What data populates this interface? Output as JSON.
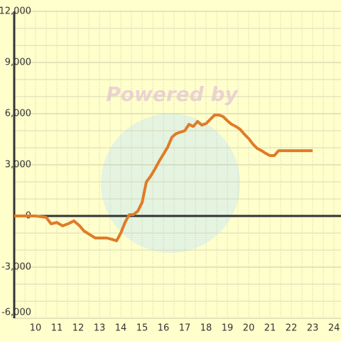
{
  "chart_data": {
    "type": "line",
    "watermark": "Powered by",
    "x": [
      9,
      10,
      10.5,
      10.73,
      11,
      11.27,
      11.53,
      11.8,
      12.07,
      12.27,
      12.53,
      12.8,
      13.07,
      13.33,
      13.6,
      13.8,
      14,
      14.2,
      14.4,
      14.6,
      14.8,
      15,
      15.2,
      15.4,
      15.6,
      15.8,
      16,
      16.2,
      16.4,
      16.6,
      16.8,
      17,
      17.2,
      17.4,
      17.6,
      17.8,
      18,
      18.2,
      18.4,
      18.6,
      18.8,
      19,
      19.2,
      19.4,
      19.6,
      19.8,
      20,
      20.2,
      20.4,
      20.6,
      20.8,
      21,
      21.2,
      21.4,
      21.6,
      22,
      22.5,
      23
    ],
    "series": [
      {
        "color": "#e07b28",
        "values": [
          0,
          0,
          -80,
          -460,
          -380,
          -580,
          -460,
          -290,
          -580,
          -875,
          -1080,
          -1290,
          -1290,
          -1290,
          -1375,
          -1460,
          -1000,
          -375,
          80,
          80,
          290,
          790,
          2000,
          2330,
          2750,
          3210,
          3625,
          4040,
          4625,
          4830,
          4920,
          5000,
          5375,
          5250,
          5540,
          5330,
          5420,
          5670,
          5920,
          5920,
          5830,
          5580,
          5375,
          5250,
          5080,
          4790,
          4540,
          4210,
          3960,
          3830,
          3670,
          3540,
          3540,
          3830,
          3830,
          3830,
          3830,
          3830
        ]
      }
    ],
    "xlim": [
      9,
      24.33
    ],
    "ylim": [
      -6000,
      12000
    ],
    "xticks": [
      10,
      11,
      12,
      13,
      14,
      15,
      16,
      17,
      18,
      19,
      20,
      21,
      22,
      23,
      24
    ],
    "yticks": [
      {
        "value": -6000,
        "label": "-6,000"
      },
      {
        "value": -3000,
        "label": "-3,000"
      },
      0,
      {
        "value": 3000,
        "label": "3,000"
      },
      {
        "value": 6000,
        "label": "6,000"
      },
      {
        "value": 9000,
        "label": "9,000"
      },
      {
        "value": 12000,
        "label": "12,000"
      }
    ],
    "grid": true
  }
}
